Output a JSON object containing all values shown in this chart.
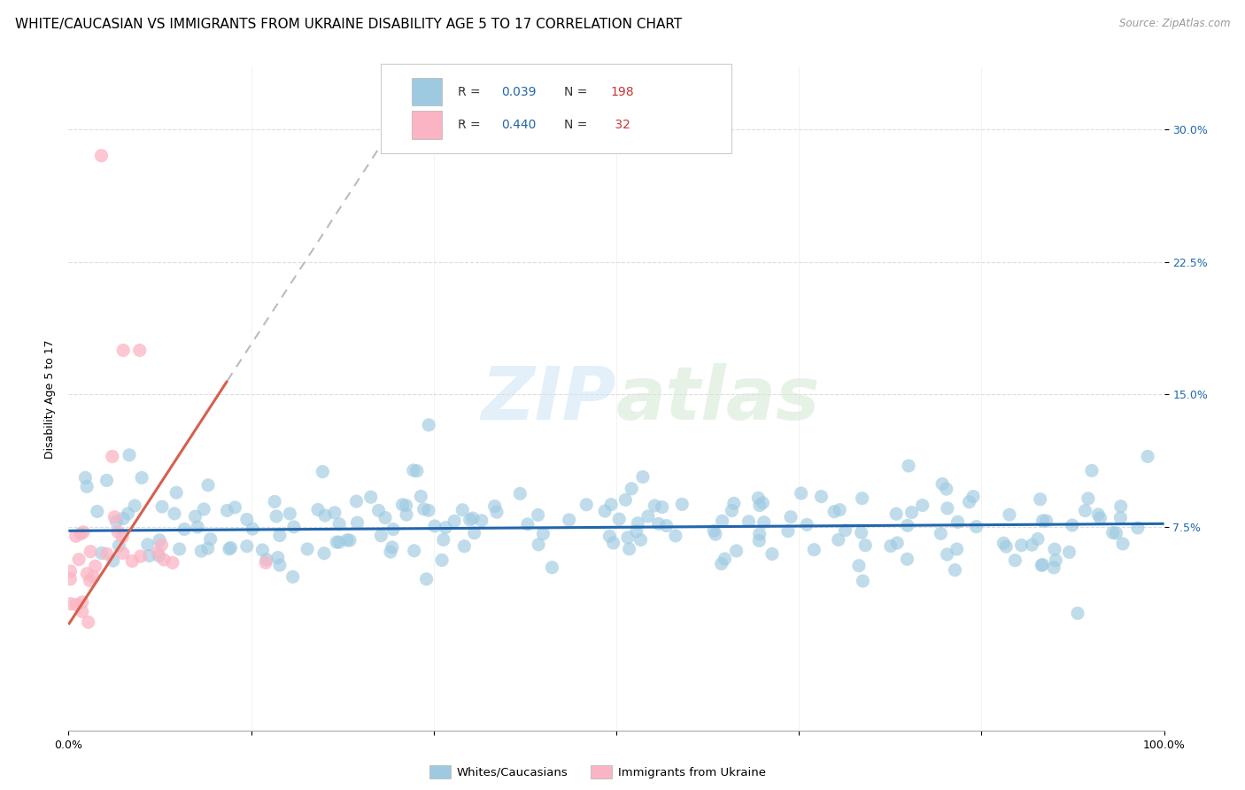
{
  "title": "WHITE/CAUCASIAN VS IMMIGRANTS FROM UKRAINE DISABILITY AGE 5 TO 17 CORRELATION CHART",
  "source": "Source: ZipAtlas.com",
  "ylabel": "Disability Age 5 to 17",
  "ytick_labels": [
    "7.5%",
    "15.0%",
    "22.5%",
    "30.0%"
  ],
  "ytick_values": [
    0.075,
    0.15,
    0.225,
    0.3
  ],
  "xlim": [
    0.0,
    1.0
  ],
  "ylim": [
    -0.04,
    0.335
  ],
  "blue_R": 0.039,
  "blue_N": 198,
  "pink_R": 0.44,
  "pink_N": 32,
  "blue_color": "#9ecae1",
  "pink_color": "#fbb4c3",
  "blue_line_color": "#2166ac",
  "pink_line_color": "#d6604d",
  "legend_label_blue": "Whites/Caucasians",
  "legend_label_pink": "Immigrants from Ukraine",
  "watermark": "ZIPatlas",
  "title_fontsize": 11,
  "axis_label_fontsize": 9,
  "tick_fontsize": 9,
  "legend_fontsize": 10
}
